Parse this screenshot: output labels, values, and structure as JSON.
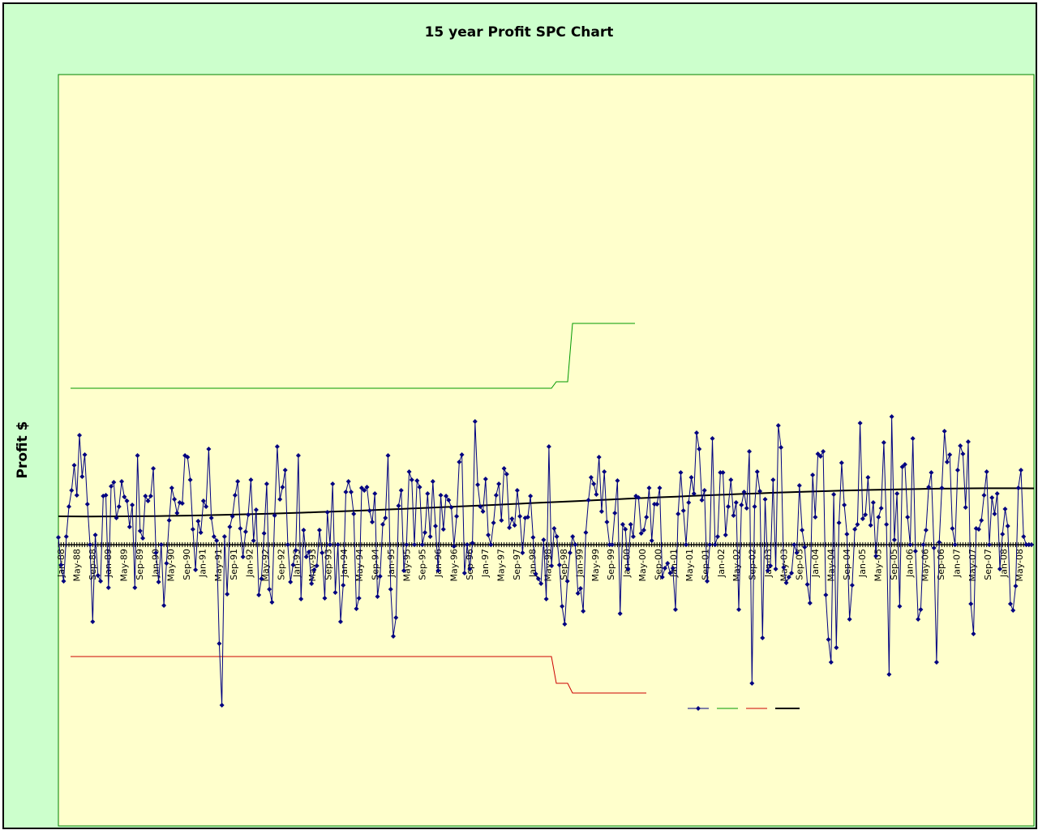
{
  "chart_data": {
    "type": "line",
    "title": "15 year Profit SPC Chart",
    "ylabel": "Profit $",
    "xlabel": "",
    "grid": false,
    "x_tick_labels": [
      "Jan-88",
      "May-88",
      "Sep-88",
      "Jan-89",
      "May-89",
      "Sep-89",
      "Jan-90",
      "May-90",
      "Sep-90",
      "Jan-91",
      "May-91",
      "Sep-91",
      "Jan-92",
      "May-92",
      "Sep-92",
      "Jan-93",
      "May-93",
      "Sep-93",
      "Jan-94",
      "May-94",
      "Sep-94",
      "Jan-95",
      "May-95",
      "Sep-95",
      "Jan-96",
      "May-96",
      "Sep-96",
      "Jan-97",
      "May-97",
      "Sep-97",
      "Jan-98",
      "May-98",
      "Sep-98",
      "Jan-99",
      "May-99",
      "Sep-99",
      "Jan-00",
      "May-00",
      "Sep-00",
      "Jan-01",
      "May-01",
      "Sep-01",
      "Jan-02",
      "May-02",
      "Sep-02",
      "Jan-03",
      "May-03",
      "Sep-03",
      "Jan-04",
      "May-04",
      "Sep-04",
      "Jan-05",
      "May-05",
      "Sep-05",
      "Jan-06",
      "May-06",
      "Sep-06",
      "Jan-07",
      "May-07",
      "Sep-07",
      "Jan-08",
      "May-08"
    ],
    "y_relative_values": [
      0.09,
      -0.25,
      -0.45,
      0.1,
      0.47,
      0.67,
      0.98,
      0.61,
      1.35,
      0.84,
      1.11,
      0.5,
      0.0,
      -0.95,
      0.12,
      -0.38,
      -0.45,
      0.6,
      0.61,
      -0.53,
      0.72,
      0.77,
      0.33,
      0.47,
      0.78,
      0.59,
      0.54,
      0.22,
      0.49,
      -0.53,
      1.1,
      0.17,
      0.08,
      0.6,
      0.54,
      0.6,
      0.94,
      -0.1,
      -0.46,
      0.0,
      -0.75,
      -0.23,
      0.3,
      0.7,
      0.56,
      0.39,
      0.52,
      0.51,
      1.1,
      1.08,
      0.8,
      0.19,
      -0.31,
      0.29,
      0.15,
      0.54,
      0.47,
      1.18,
      0.33,
      0.1,
      0.05,
      -1.22,
      -1.98,
      0.1,
      -0.61,
      0.22,
      0.35,
      0.61,
      0.78,
      0.2,
      -0.15,
      0.16,
      0.37,
      0.8,
      0.05,
      0.43,
      -0.62,
      -0.42,
      0.14,
      0.75,
      -0.55,
      -0.71,
      0.36,
      1.21,
      0.56,
      0.71,
      0.92,
      0.0,
      -0.46,
      -0.25,
      -0.07,
      1.1,
      -0.67,
      0.18,
      -0.15,
      -0.09,
      -0.48,
      -0.31,
      -0.26,
      0.18,
      -0.1,
      -0.66,
      0.4,
      0.0,
      0.75,
      -0.59,
      0.0,
      -0.95,
      -0.5,
      0.65,
      0.78,
      0.65,
      0.38,
      -0.79,
      -0.66,
      0.7,
      0.67,
      0.71,
      0.42,
      0.28,
      0.63,
      -0.64,
      -0.39,
      0.25,
      0.33,
      1.1,
      -0.55,
      -1.13,
      -0.9,
      0.48,
      0.67,
      -0.32,
      0.0,
      0.9,
      0.8,
      0.0,
      0.79,
      0.71,
      0.0,
      0.15,
      0.63,
      0.1,
      0.78,
      0.23,
      -0.32,
      0.61,
      0.19,
      0.6,
      0.55,
      0.46,
      -0.02,
      0.35,
      1.02,
      1.11,
      -0.35,
      0.0,
      -0.3,
      0.02,
      1.52,
      0.74,
      0.47,
      0.41,
      0.81,
      0.12,
      0.0,
      0.27,
      0.61,
      0.75,
      0.3,
      0.94,
      0.87,
      0.21,
      0.32,
      0.24,
      0.67,
      0.35,
      -0.1,
      0.33,
      0.34,
      0.6,
      0.09,
      -0.36,
      -0.42,
      -0.48,
      0.06,
      -0.67,
      1.21,
      -0.26,
      0.2,
      0.1,
      -0.25,
      -0.76,
      -0.98,
      -0.45,
      -0.1,
      0.1,
      0.0,
      -0.6,
      -0.54,
      -0.82,
      0.15,
      0.55,
      0.83,
      0.75,
      0.62,
      1.08,
      0.41,
      0.9,
      0.28,
      0.0,
      0.0,
      0.39,
      0.79,
      -0.85,
      0.25,
      0.19,
      -0.3,
      0.25,
      0.1,
      0.6,
      0.58,
      0.14,
      0.18,
      0.34,
      0.7,
      0.05,
      0.5,
      0.5,
      0.7,
      -0.4,
      -0.29,
      -0.23,
      -0.35,
      -0.29,
      -0.8,
      0.38,
      0.89,
      0.42,
      0.0,
      0.52,
      0.83,
      0.63,
      1.38,
      1.18,
      0.55,
      0.67,
      -0.45,
      0.0,
      1.31,
      0.0,
      0.1,
      0.89,
      0.89,
      0.12,
      0.47,
      0.8,
      0.36,
      0.52,
      -0.8,
      0.49,
      0.65,
      0.45,
      1.15,
      -1.71,
      0.47,
      0.9,
      0.66,
      -1.15,
      0.56,
      -0.32,
      -0.26,
      0.8,
      -0.3,
      1.47,
      1.2,
      -0.28,
      -0.47,
      -0.4,
      -0.35,
      0.0,
      -0.1,
      0.73,
      0.18,
      -0.03,
      -0.49,
      -0.72,
      0.86,
      0.34,
      1.12,
      1.09,
      1.15,
      -0.62,
      -1.17,
      -1.45,
      0.62,
      -1.27,
      0.27,
      1.01,
      0.49,
      0.13,
      -0.92,
      -0.5,
      0.19,
      0.25,
      1.5,
      0.32,
      0.37,
      0.83,
      0.24,
      0.52,
      -0.14,
      0.34,
      0.45,
      1.26,
      0.25,
      -1.6,
      1.58,
      0.06,
      0.63,
      -0.76,
      0.96,
      0.99,
      0.34,
      0.0,
      1.31,
      -0.08,
      -0.92,
      -0.8,
      0.0,
      0.18,
      0.71,
      0.89,
      -0.04,
      -1.45,
      0.03,
      0.7,
      1.4,
      1.02,
      1.11,
      0.2,
      0.0,
      0.92,
      1.22,
      1.12,
      0.46,
      1.27,
      -0.73,
      -1.1,
      0.2,
      0.19,
      0.3,
      0.61,
      0.9,
      0.0,
      0.58,
      0.38,
      0.63,
      -0.3,
      0.13,
      0.44,
      0.23,
      -0.73,
      -0.81,
      -0.51,
      0.7,
      0.92,
      0.1,
      0.0,
      0.0,
      0.0
    ],
    "series": [
      {
        "color": "#000080",
        "style": "line-with-diamond-markers"
      },
      {
        "color": "#009900",
        "style": "line"
      },
      {
        "color": "#cc0000",
        "style": "line"
      },
      {
        "color": "#000000",
        "style": "thick-line"
      }
    ],
    "legend_placement": "bottom-right",
    "colors": {
      "background": "#ccffcc",
      "plot_area": "#ffffcc",
      "data": "#000080",
      "ucl": "#009900",
      "lcl": "#cc0000",
      "trend": "#000000"
    }
  }
}
